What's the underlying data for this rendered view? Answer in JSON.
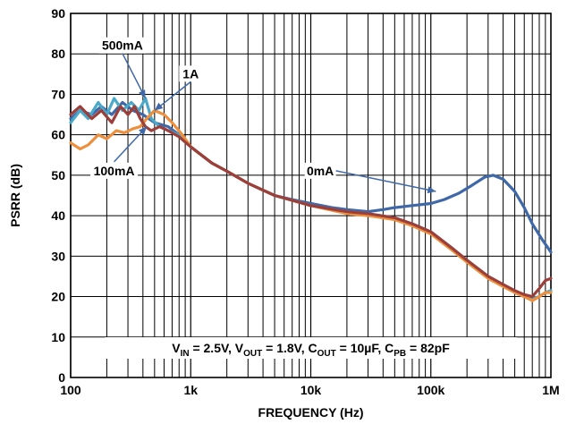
{
  "chart_data": {
    "type": "line",
    "xlabel": "FREQUENCY (Hz)",
    "ylabel": "PSRR (dB)",
    "xscale": "log",
    "xlim": [
      100,
      1000000
    ],
    "ylim": [
      0,
      90
    ],
    "grid": true,
    "x_ticks": [
      {
        "value": 100,
        "label": "100"
      },
      {
        "value": 1000,
        "label": "1k"
      },
      {
        "value": 10000,
        "label": "10k"
      },
      {
        "value": 100000,
        "label": "100k"
      },
      {
        "value": 1000000,
        "label": "1M"
      }
    ],
    "y_ticks": [
      0,
      10,
      20,
      30,
      40,
      50,
      60,
      70,
      80,
      90
    ],
    "series": [
      {
        "name": "0mA",
        "color": "#3e68a8",
        "points": [
          [
            100,
            64
          ],
          [
            120,
            66
          ],
          [
            150,
            65
          ],
          [
            180,
            67
          ],
          [
            220,
            65
          ],
          [
            270,
            68
          ],
          [
            330,
            66
          ],
          [
            400,
            65
          ],
          [
            500,
            63
          ],
          [
            650,
            62
          ],
          [
            800,
            60
          ],
          [
            1000,
            57
          ],
          [
            1500,
            53
          ],
          [
            2000,
            51
          ],
          [
            3000,
            48
          ],
          [
            5000,
            45
          ],
          [
            7000,
            44
          ],
          [
            10000,
            43
          ],
          [
            15000,
            42
          ],
          [
            20000,
            41.5
          ],
          [
            30000,
            41
          ],
          [
            40000,
            41.5
          ],
          [
            50000,
            42
          ],
          [
            70000,
            42.5
          ],
          [
            100000,
            43
          ],
          [
            130000,
            44
          ],
          [
            170000,
            45.5
          ],
          [
            220000,
            47.5
          ],
          [
            280000,
            49.5
          ],
          [
            330000,
            50
          ],
          [
            400000,
            49
          ],
          [
            500000,
            46
          ],
          [
            600000,
            42
          ],
          [
            700000,
            38
          ],
          [
            850000,
            34
          ],
          [
            1000000,
            31
          ]
        ]
      },
      {
        "name": "500mA",
        "color": "#4aa8c8",
        "points": [
          [
            100,
            63
          ],
          [
            120,
            66
          ],
          [
            140,
            64
          ],
          [
            170,
            68
          ],
          [
            200,
            65
          ],
          [
            230,
            69
          ],
          [
            270,
            66
          ],
          [
            320,
            68
          ],
          [
            370,
            66
          ],
          [
            420,
            69
          ],
          [
            470,
            64
          ],
          [
            550,
            62
          ],
          [
            650,
            61
          ],
          [
            800,
            60
          ],
          [
            1000,
            57
          ],
          [
            1500,
            53
          ],
          [
            2000,
            51
          ],
          [
            3000,
            48
          ],
          [
            5000,
            45
          ],
          [
            10000,
            42.5
          ],
          [
            20000,
            41
          ],
          [
            30000,
            40.5
          ],
          [
            50000,
            39.5
          ],
          [
            70000,
            38
          ],
          [
            100000,
            36
          ],
          [
            150000,
            32
          ],
          [
            200000,
            29
          ],
          [
            300000,
            25
          ],
          [
            400000,
            23
          ],
          [
            500000,
            21
          ],
          [
            600000,
            20
          ],
          [
            700000,
            19.5
          ],
          [
            800000,
            20
          ],
          [
            900000,
            21
          ],
          [
            1000000,
            21.5
          ]
        ]
      },
      {
        "name": "1A",
        "color": "#ed8f3c",
        "points": [
          [
            100,
            58
          ],
          [
            120,
            56.5
          ],
          [
            140,
            57.5
          ],
          [
            170,
            60
          ],
          [
            200,
            59
          ],
          [
            240,
            61
          ],
          [
            280,
            60.5
          ],
          [
            330,
            61.5
          ],
          [
            380,
            62
          ],
          [
            430,
            64
          ],
          [
            500,
            66
          ],
          [
            600,
            65
          ],
          [
            700,
            63
          ],
          [
            850,
            60
          ],
          [
            1000,
            57
          ],
          [
            1500,
            53
          ],
          [
            2000,
            51
          ],
          [
            3000,
            48
          ],
          [
            5000,
            45
          ],
          [
            10000,
            42.5
          ],
          [
            20000,
            40.5
          ],
          [
            30000,
            40
          ],
          [
            50000,
            39
          ],
          [
            70000,
            37.5
          ],
          [
            100000,
            35.5
          ],
          [
            150000,
            31.5
          ],
          [
            200000,
            28.5
          ],
          [
            300000,
            24.5
          ],
          [
            400000,
            22.5
          ],
          [
            500000,
            21
          ],
          [
            600000,
            20
          ],
          [
            700000,
            19
          ],
          [
            800000,
            20
          ],
          [
            900000,
            21
          ],
          [
            1000000,
            21
          ]
        ]
      },
      {
        "name": "100mA",
        "color": "#9c3f3a",
        "points": [
          [
            100,
            65
          ],
          [
            120,
            67
          ],
          [
            150,
            64
          ],
          [
            180,
            66
          ],
          [
            220,
            63
          ],
          [
            260,
            67
          ],
          [
            300,
            65
          ],
          [
            340,
            67
          ],
          [
            380,
            64
          ],
          [
            420,
            62
          ],
          [
            470,
            61
          ],
          [
            550,
            62
          ],
          [
            650,
            61
          ],
          [
            800,
            59.5
          ],
          [
            1000,
            57
          ],
          [
            1500,
            53
          ],
          [
            2000,
            51
          ],
          [
            3000,
            48
          ],
          [
            5000,
            45
          ],
          [
            10000,
            42.5
          ],
          [
            20000,
            41
          ],
          [
            30000,
            40.5
          ],
          [
            50000,
            39.5
          ],
          [
            70000,
            38
          ],
          [
            100000,
            36
          ],
          [
            150000,
            32
          ],
          [
            200000,
            29
          ],
          [
            300000,
            25
          ],
          [
            400000,
            23
          ],
          [
            500000,
            21.5
          ],
          [
            600000,
            20.5
          ],
          [
            700000,
            20
          ],
          [
            800000,
            22
          ],
          [
            900000,
            24
          ],
          [
            1000000,
            24.5
          ]
        ]
      }
    ],
    "annotations": [
      {
        "text": "500mA",
        "x": 270,
        "y": 81,
        "arrow_to": [
          420,
          69
        ]
      },
      {
        "text": "1A",
        "x": 1000,
        "y": 74,
        "arrow_to": [
          500,
          66
        ]
      },
      {
        "text": "100mA",
        "x": 230,
        "y": 50,
        "arrow_to": [
          430,
          62
        ]
      },
      {
        "text": "0mA",
        "x": 12000,
        "y": 50,
        "arrow_to": [
          110000,
          46
        ]
      }
    ],
    "conditions": {
      "parts": [
        {
          "t": "V"
        },
        {
          "t": "IN",
          "sub": true
        },
        {
          "t": " = 2.5V, V"
        },
        {
          "t": "OUT",
          "sub": true
        },
        {
          "t": " = 1.8V, C"
        },
        {
          "t": "OUT",
          "sub": true
        },
        {
          "t": " = 10µF, C"
        },
        {
          "t": "PB",
          "sub": true
        },
        {
          "t": " = 82pF"
        }
      ]
    }
  }
}
